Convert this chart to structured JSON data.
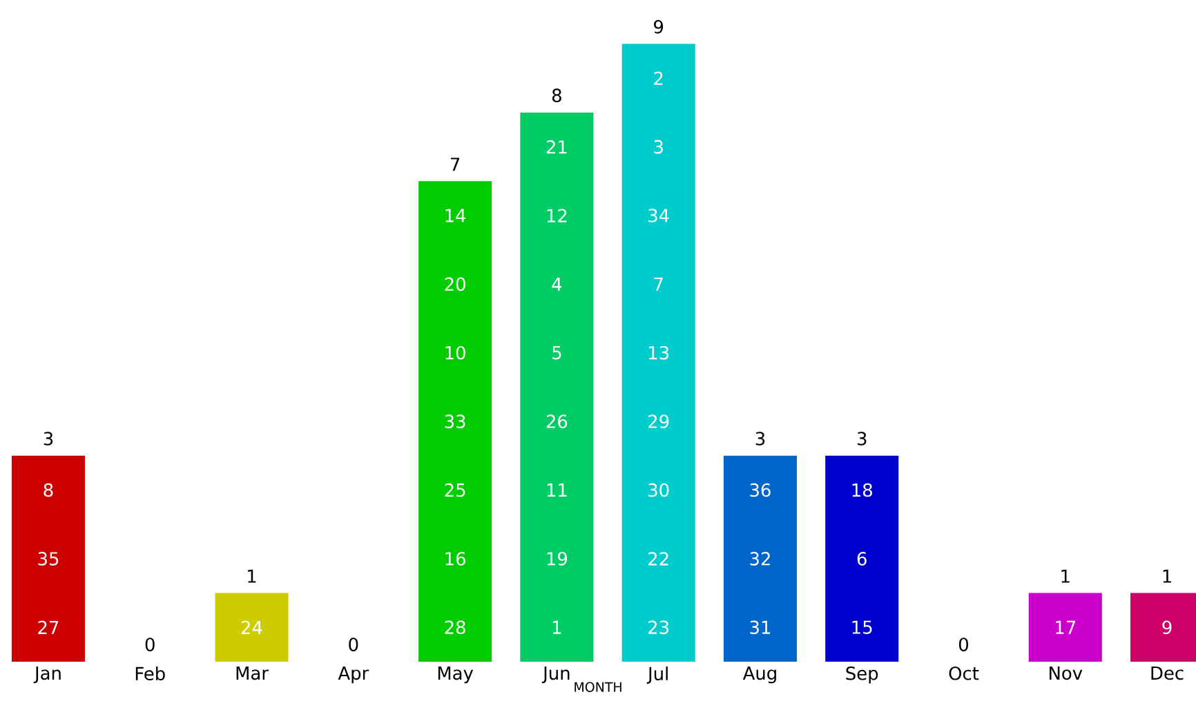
{
  "chart_data": {
    "type": "bar",
    "xlabel": "MONTH",
    "data_labels": true,
    "categories": [
      "Jan",
      "Feb",
      "Mar",
      "Apr",
      "May",
      "Jun",
      "Jul",
      "Aug",
      "Sep",
      "Oct",
      "Nov",
      "Dec"
    ],
    "values": [
      3,
      0,
      1,
      0,
      7,
      8,
      9,
      3,
      3,
      0,
      1,
      1
    ],
    "colors": [
      "#cc0000",
      "#cc6600",
      "#cccc00",
      "#66cc00",
      "#00cc00",
      "#00cc66",
      "#00cccc",
      "#0066cc",
      "#0000cc",
      "#6600cc",
      "#cc00cc",
      "#cc0066"
    ],
    "annotations": [
      "27",
      "35",
      "8",
      "24",
      "28",
      "16",
      "25",
      "33",
      "10",
      "20",
      "14",
      "1",
      "19",
      "11",
      "26",
      "5",
      "4",
      "12",
      "21",
      "23",
      "22",
      "30",
      "29",
      "13",
      "7",
      "34",
      "3",
      "2",
      "31",
      "32",
      "36",
      "15",
      "6",
      "18",
      "17",
      "9"
    ]
  }
}
